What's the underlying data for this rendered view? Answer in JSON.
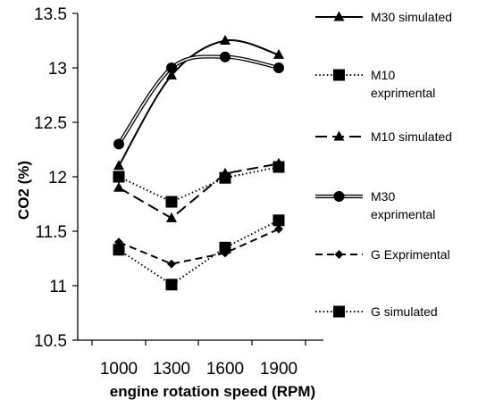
{
  "chart_data": {
    "type": "line",
    "xlabel": "engine rotation speed (RPM)",
    "ylabel": "CO2 (%)",
    "categories": [
      "1000",
      "1300",
      "1600",
      "1900"
    ],
    "ylim": [
      10.5,
      13.5
    ],
    "yticks": [
      "10.5",
      "11",
      "11.5",
      "12",
      "12.5",
      "13",
      "13.5"
    ],
    "grid": false,
    "legend_position": "right",
    "series": [
      {
        "name": "M30 simulated",
        "values": [
          12.1,
          12.93,
          13.25,
          13.12
        ],
        "marker": "triangle",
        "line": "solid"
      },
      {
        "name": "M10 exprimental",
        "values": [
          12.0,
          11.77,
          11.99,
          12.09
        ],
        "marker": "square",
        "line": "dotted"
      },
      {
        "name": "M10 simulated",
        "values": [
          11.9,
          11.62,
          12.03,
          12.12
        ],
        "marker": "triangle",
        "line": "longdash"
      },
      {
        "name": "M30 exprimental",
        "values": [
          12.3,
          13.0,
          13.1,
          13.0
        ],
        "marker": "circle",
        "line": "double"
      },
      {
        "name": "G Exprimental",
        "values": [
          11.4,
          11.2,
          11.3,
          11.52
        ],
        "marker": "diamond",
        "line": "dashed"
      },
      {
        "name": "G simulated",
        "values": [
          11.33,
          11.01,
          11.35,
          11.6
        ],
        "marker": "square",
        "line": "dotted"
      }
    ]
  }
}
